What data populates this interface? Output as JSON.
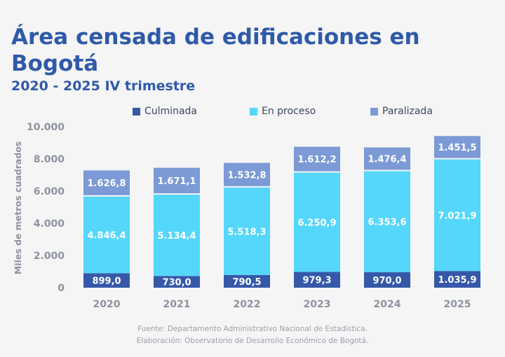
{
  "header": {
    "title": "Área censada de edificaciones en Bogotá",
    "subtitle": "2020 - 2025 IV trimestre"
  },
  "colors": {
    "culminada": "#3558a8",
    "en_proceso": "#55d6fb",
    "paralizada": "#7c9ad6",
    "title": "#2f5aa8"
  },
  "chart_data": {
    "type": "bar",
    "stacked": true,
    "categories": [
      "2020",
      "2021",
      "2022",
      "2023",
      "2024",
      "2025"
    ],
    "series": [
      {
        "name": "Culminada",
        "values": [
          899.0,
          730.0,
          790.5,
          979.3,
          970.0,
          1035.9
        ],
        "labels": [
          "899,0",
          "730,0",
          "790,5",
          "979,3",
          "970,0",
          "1.035,9"
        ]
      },
      {
        "name": "En proceso",
        "values": [
          4846.4,
          5134.4,
          5518.3,
          6250.9,
          6353.6,
          7021.9
        ],
        "labels": [
          "4.846,4",
          "5.134,4",
          "5.518,3",
          "6.250,9",
          "6.353,6",
          "7.021,9"
        ]
      },
      {
        "name": "Paralizada",
        "values": [
          1626.8,
          1671.1,
          1532.8,
          1612.2,
          1476.4,
          1451.5
        ],
        "labels": [
          "1.626,8",
          "1.671,1",
          "1.532,8",
          "1.612,2",
          "1.476,4",
          "1.451,5"
        ]
      }
    ],
    "ylabel": "Miles de metros cuadrados",
    "ylim": [
      0,
      10000
    ],
    "yticks": [
      0,
      2000,
      4000,
      6000,
      8000,
      10000
    ],
    "ytick_labels": [
      "0",
      "2.000",
      "4.000",
      "6.000",
      "8.000",
      "10.000"
    ],
    "legend_position": "top",
    "grid": false
  },
  "footer": {
    "source": "Fuente: Departamento Administrativo Nacional de Estadística.",
    "elaboration": "Elaboración: Observatorio de Desarrollo Económico de Bogotá."
  }
}
